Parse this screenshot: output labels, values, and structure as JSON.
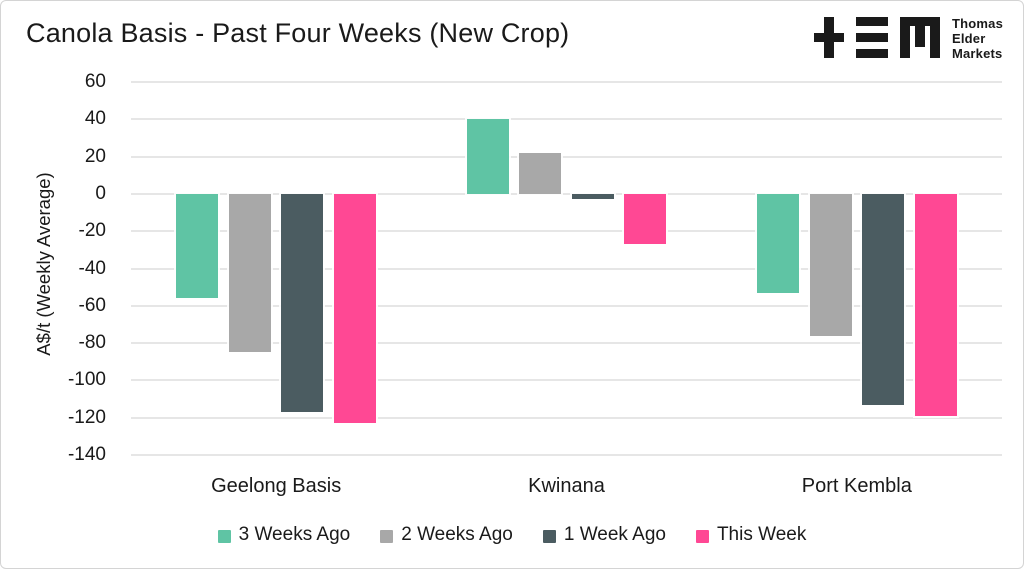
{
  "theme": {
    "background": "#ffffff",
    "text": "#1a1a1a",
    "gridline": "#e6e6e6",
    "panel_border": "#d4d4d4",
    "logo_color": "#1a1a1a"
  },
  "logo": {
    "company_lines": [
      "Thomas",
      "Elder",
      "Markets"
    ]
  },
  "chart_data": {
    "type": "bar",
    "title": "Canola Basis - Past Four Weeks (New Crop)",
    "ylabel": "A$/t (Weekly Average)",
    "xlabel": "",
    "categories": [
      "Geelong Basis",
      "Kwinana",
      "Port Kembla"
    ],
    "series": [
      {
        "name": "3 Weeks Ago",
        "color": "#5fc4a4",
        "values": [
          -56,
          40,
          -53
        ]
      },
      {
        "name": "2 Weeks Ago",
        "color": "#a8a8a8",
        "values": [
          -85,
          22,
          -76
        ]
      },
      {
        "name": "1 Week Ago",
        "color": "#4b5c61",
        "values": [
          -117,
          -3,
          -113
        ]
      },
      {
        "name": "This Week",
        "color": "#ff4894",
        "values": [
          -123,
          -27,
          -119
        ]
      }
    ],
    "ylim": [
      -140,
      60
    ],
    "ytick_step": 20,
    "grid": true,
    "legend_position": "bottom"
  }
}
